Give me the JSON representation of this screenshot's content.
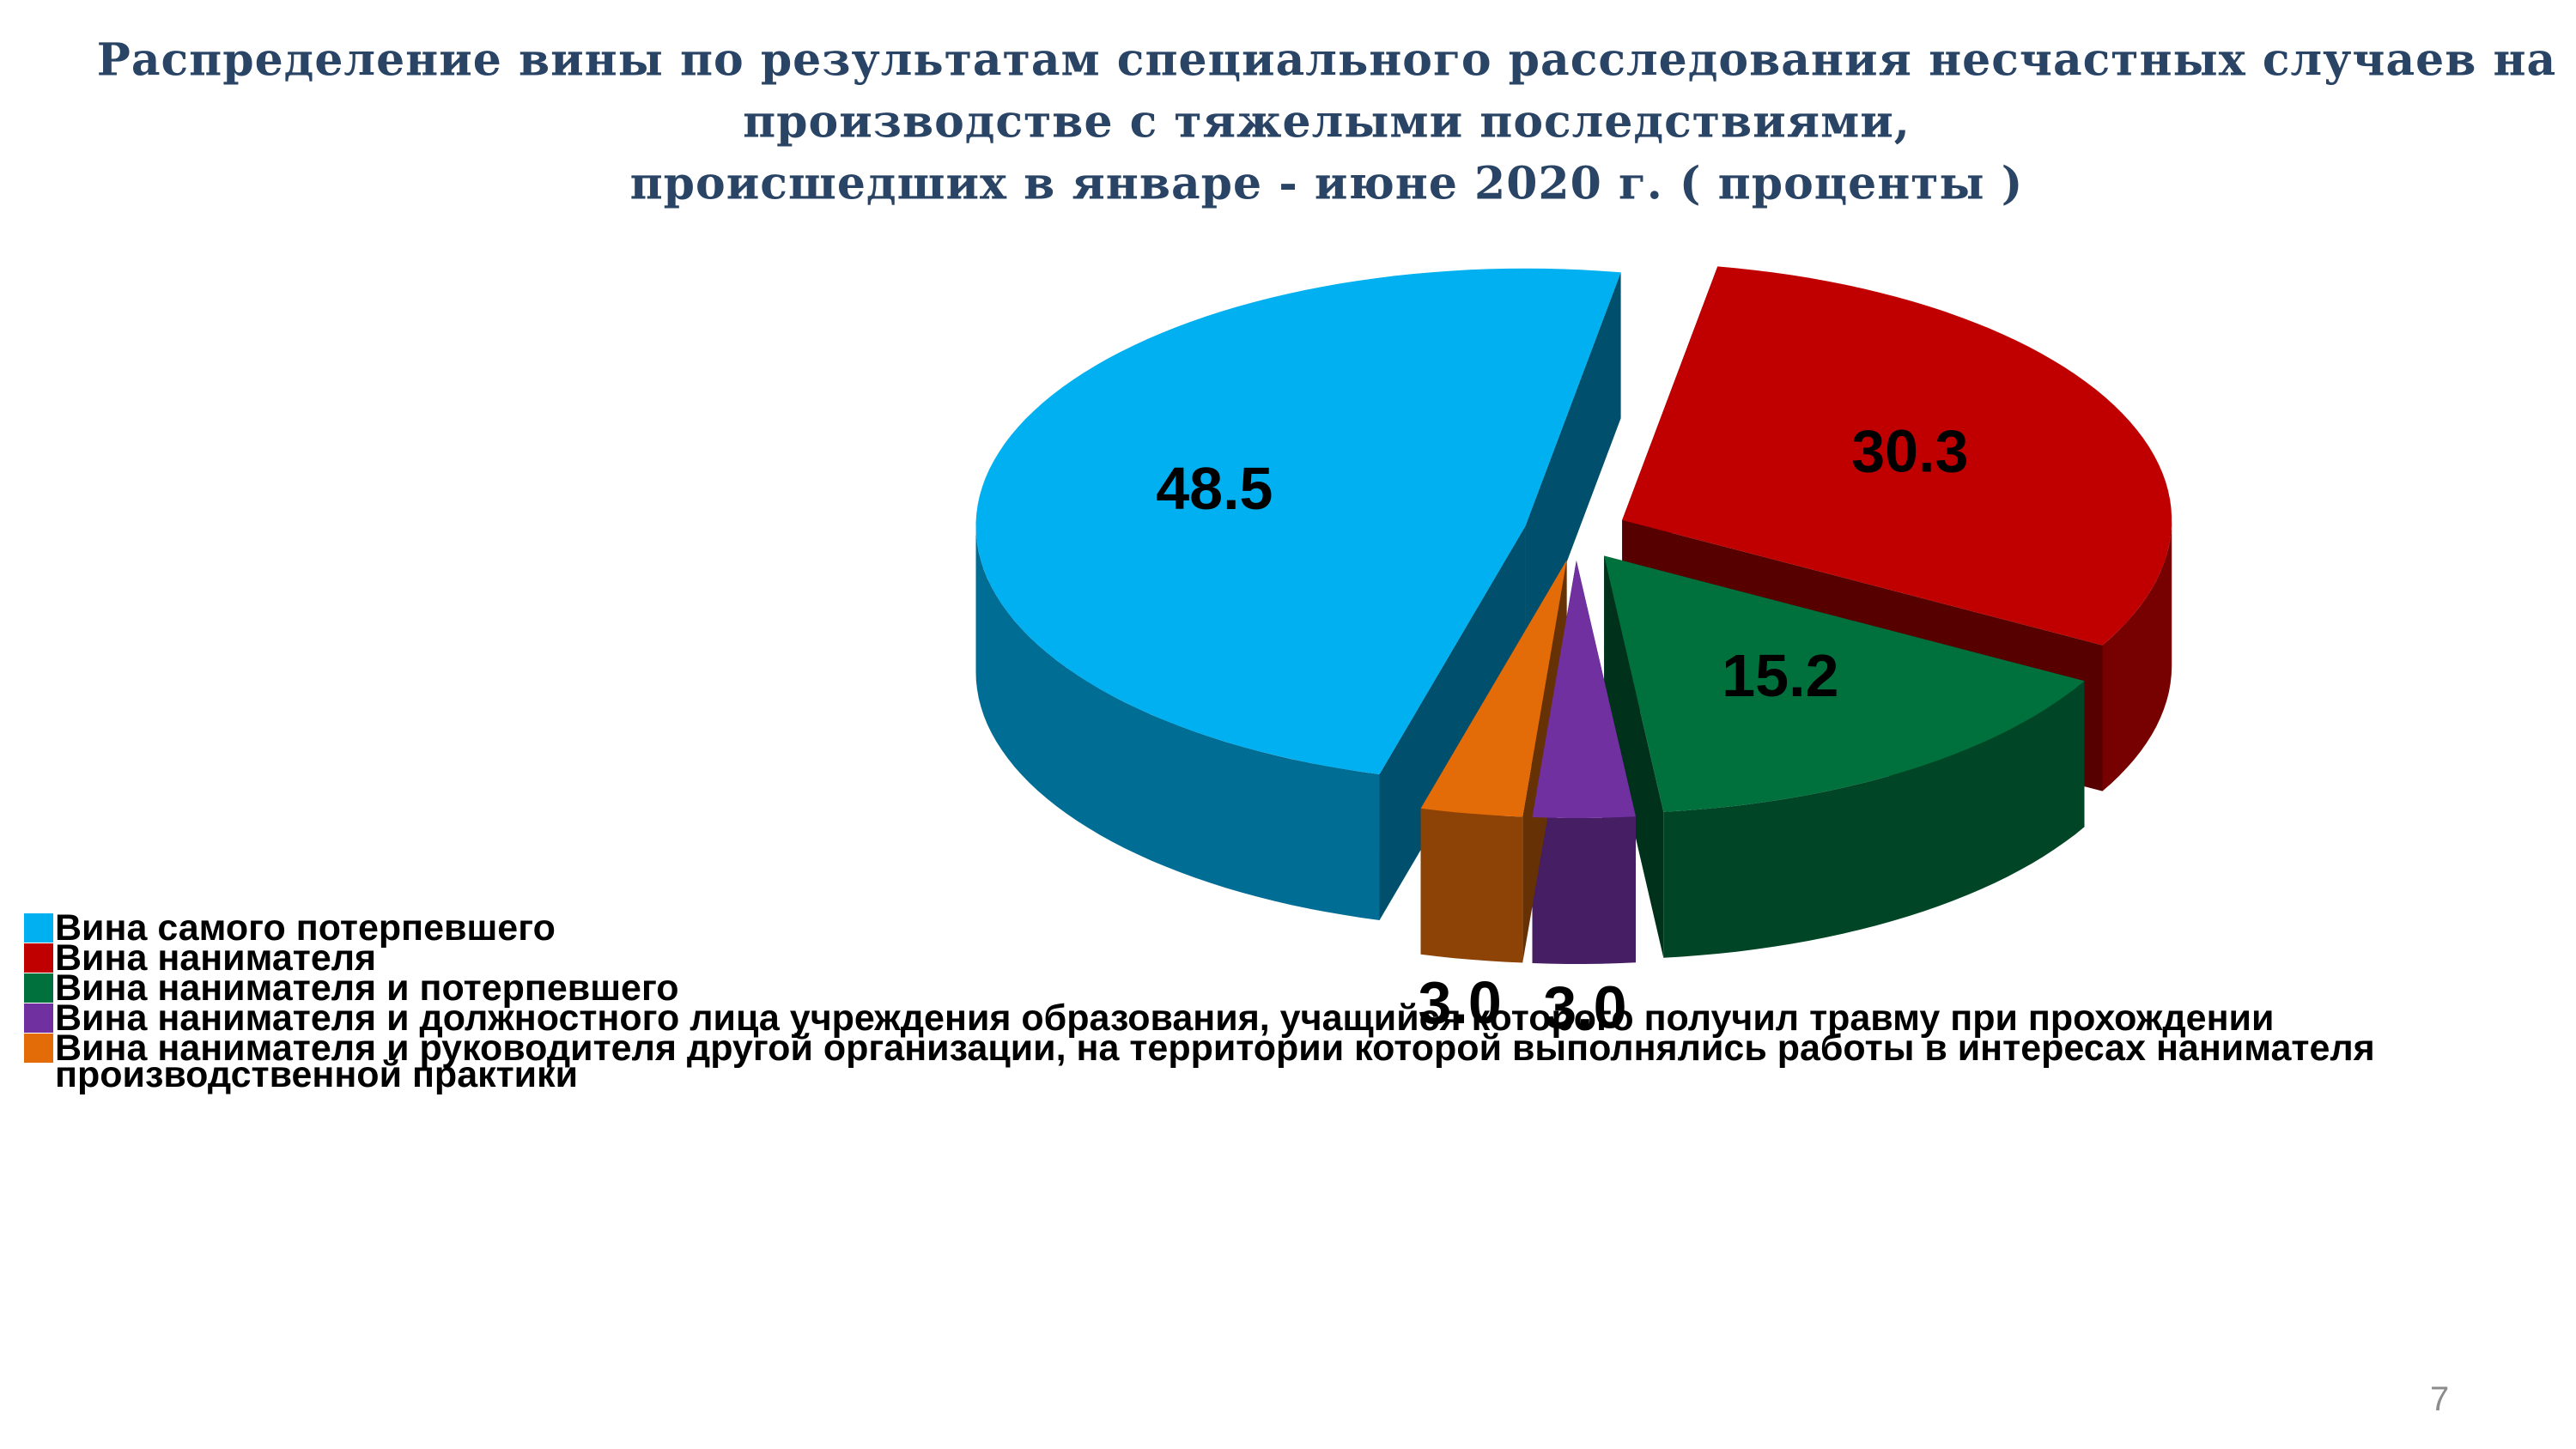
{
  "chart_data": {
    "type": "pie",
    "title": [
      "Распределение  вины  по результатам специального расследования  несчастных случаев на",
      "производстве с тяжелыми последствиями,",
      "происшедших  в  январе - июне 2020 г. ( проценты )"
    ],
    "categories": [
      "Вина самого потерпевшего",
      "Вина нанимателя",
      "Вина нанимателя и потерпевшего",
      "Вина нанимателя и должностного лица учреждения образования, учащийся которого получил травму при прохождении производственной практики",
      "Вина нанимателя и руководителя другой организации, на территории которой выполнялись работы в интересах нанимателя"
    ],
    "values": [
      48.5,
      30.3,
      15.2,
      3.0,
      3.0
    ],
    "value_labels": [
      "48.5",
      "30.3",
      "15.2",
      "3.0",
      "3.0"
    ],
    "colors": [
      "#00b0f0",
      "#c00000",
      "#00703c",
      "#7030a0",
      "#e36c09"
    ],
    "legend": "bottom-left"
  },
  "page_number": "7"
}
